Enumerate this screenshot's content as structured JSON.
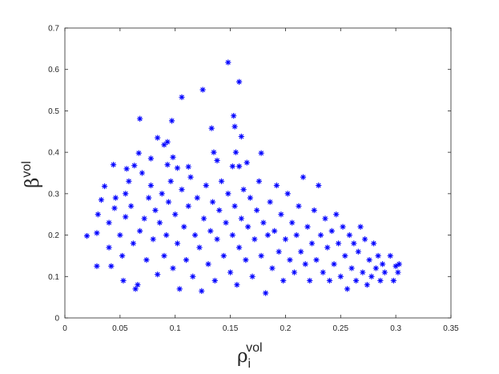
{
  "chart_data": {
    "type": "scatter",
    "title": "",
    "xlabel": {
      "symbol": "ρ",
      "subscript": "i",
      "superscript": "vol"
    },
    "ylabel": {
      "symbol": "β",
      "superscript": "vol"
    },
    "xlim": [
      0,
      0.35
    ],
    "ylim": [
      0,
      0.7
    ],
    "xticks": [
      0,
      0.05,
      0.1,
      0.15,
      0.2,
      0.25,
      0.3,
      0.35
    ],
    "xtick_labels": [
      "0",
      "0.05",
      "0.1",
      "0.15",
      "0.2",
      "0.25",
      "0.3",
      "0.35"
    ],
    "yticks": [
      0,
      0.1,
      0.2,
      0.3,
      0.4,
      0.5,
      0.6,
      0.7
    ],
    "ytick_labels": [
      "0",
      "0.1",
      "0.2",
      "0.3",
      "0.4",
      "0.5",
      "0.6",
      "0.7"
    ],
    "grid": false,
    "legend": "none",
    "marker": "asterisk",
    "color": "#0000ff",
    "series": [
      {
        "points": [
          [
            0.148,
            0.617
          ],
          [
            0.158,
            0.57
          ],
          [
            0.125,
            0.551
          ],
          [
            0.106,
            0.533
          ],
          [
            0.153,
            0.488
          ],
          [
            0.068,
            0.481
          ],
          [
            0.097,
            0.476
          ],
          [
            0.133,
            0.458
          ],
          [
            0.154,
            0.462
          ],
          [
            0.16,
            0.438
          ],
          [
            0.084,
            0.435
          ],
          [
            0.093,
            0.425
          ],
          [
            0.09,
            0.418
          ],
          [
            0.155,
            0.4
          ],
          [
            0.178,
            0.398
          ],
          [
            0.135,
            0.4
          ],
          [
            0.044,
            0.37
          ],
          [
            0.067,
            0.398
          ],
          [
            0.078,
            0.385
          ],
          [
            0.098,
            0.388
          ],
          [
            0.138,
            0.38
          ],
          [
            0.165,
            0.375
          ],
          [
            0.093,
            0.37
          ],
          [
            0.063,
            0.368
          ],
          [
            0.056,
            0.36
          ],
          [
            0.102,
            0.362
          ],
          [
            0.112,
            0.365
          ],
          [
            0.152,
            0.366
          ],
          [
            0.158,
            0.366
          ],
          [
            0.02,
            0.198
          ],
          [
            0.029,
            0.125
          ],
          [
            0.029,
            0.205
          ],
          [
            0.03,
            0.25
          ],
          [
            0.033,
            0.285
          ],
          [
            0.036,
            0.318
          ],
          [
            0.04,
            0.23
          ],
          [
            0.04,
            0.17
          ],
          [
            0.042,
            0.125
          ],
          [
            0.045,
            0.265
          ],
          [
            0.046,
            0.29
          ],
          [
            0.05,
            0.2
          ],
          [
            0.052,
            0.15
          ],
          [
            0.053,
            0.09
          ],
          [
            0.055,
            0.244
          ],
          [
            0.055,
            0.3
          ],
          [
            0.058,
            0.33
          ],
          [
            0.06,
            0.27
          ],
          [
            0.062,
            0.18
          ],
          [
            0.064,
            0.07
          ],
          [
            0.066,
            0.08
          ],
          [
            0.068,
            0.21
          ],
          [
            0.07,
            0.35
          ],
          [
            0.072,
            0.24
          ],
          [
            0.074,
            0.14
          ],
          [
            0.076,
            0.29
          ],
          [
            0.078,
            0.32
          ],
          [
            0.08,
            0.19
          ],
          [
            0.082,
            0.26
          ],
          [
            0.084,
            0.105
          ],
          [
            0.086,
            0.23
          ],
          [
            0.088,
            0.3
          ],
          [
            0.09,
            0.15
          ],
          [
            0.092,
            0.2
          ],
          [
            0.094,
            0.28
          ],
          [
            0.096,
            0.33
          ],
          [
            0.098,
            0.12
          ],
          [
            0.1,
            0.25
          ],
          [
            0.102,
            0.18
          ],
          [
            0.104,
            0.07
          ],
          [
            0.106,
            0.31
          ],
          [
            0.108,
            0.22
          ],
          [
            0.11,
            0.14
          ],
          [
            0.112,
            0.27
          ],
          [
            0.114,
            0.34
          ],
          [
            0.116,
            0.1
          ],
          [
            0.118,
            0.2
          ],
          [
            0.12,
            0.29
          ],
          [
            0.122,
            0.17
          ],
          [
            0.124,
            0.065
          ],
          [
            0.126,
            0.24
          ],
          [
            0.128,
            0.32
          ],
          [
            0.13,
            0.13
          ],
          [
            0.132,
            0.21
          ],
          [
            0.134,
            0.28
          ],
          [
            0.136,
            0.09
          ],
          [
            0.138,
            0.19
          ],
          [
            0.14,
            0.26
          ],
          [
            0.142,
            0.33
          ],
          [
            0.144,
            0.15
          ],
          [
            0.146,
            0.23
          ],
          [
            0.148,
            0.3
          ],
          [
            0.15,
            0.11
          ],
          [
            0.152,
            0.2
          ],
          [
            0.154,
            0.27
          ],
          [
            0.156,
            0.08
          ],
          [
            0.158,
            0.17
          ],
          [
            0.16,
            0.24
          ],
          [
            0.162,
            0.31
          ],
          [
            0.164,
            0.14
          ],
          [
            0.166,
            0.22
          ],
          [
            0.168,
            0.29
          ],
          [
            0.17,
            0.1
          ],
          [
            0.172,
            0.19
          ],
          [
            0.174,
            0.26
          ],
          [
            0.176,
            0.33
          ],
          [
            0.178,
            0.15
          ],
          [
            0.18,
            0.23
          ],
          [
            0.182,
            0.06
          ],
          [
            0.184,
            0.2
          ],
          [
            0.186,
            0.28
          ],
          [
            0.188,
            0.12
          ],
          [
            0.19,
            0.21
          ],
          [
            0.192,
            0.32
          ],
          [
            0.194,
            0.16
          ],
          [
            0.196,
            0.25
          ],
          [
            0.198,
            0.09
          ],
          [
            0.2,
            0.19
          ],
          [
            0.202,
            0.3
          ],
          [
            0.204,
            0.14
          ],
          [
            0.206,
            0.23
          ],
          [
            0.208,
            0.11
          ],
          [
            0.21,
            0.2
          ],
          [
            0.212,
            0.27
          ],
          [
            0.214,
            0.16
          ],
          [
            0.216,
            0.34
          ],
          [
            0.218,
            0.13
          ],
          [
            0.22,
            0.22
          ],
          [
            0.222,
            0.09
          ],
          [
            0.224,
            0.18
          ],
          [
            0.226,
            0.26
          ],
          [
            0.228,
            0.14
          ],
          [
            0.23,
            0.32
          ],
          [
            0.232,
            0.2
          ],
          [
            0.234,
            0.11
          ],
          [
            0.236,
            0.24
          ],
          [
            0.238,
            0.17
          ],
          [
            0.24,
            0.09
          ],
          [
            0.242,
            0.21
          ],
          [
            0.244,
            0.13
          ],
          [
            0.246,
            0.25
          ],
          [
            0.248,
            0.18
          ],
          [
            0.25,
            0.1
          ],
          [
            0.252,
            0.22
          ],
          [
            0.254,
            0.15
          ],
          [
            0.256,
            0.07
          ],
          [
            0.258,
            0.2
          ],
          [
            0.26,
            0.12
          ],
          [
            0.262,
            0.18
          ],
          [
            0.264,
            0.09
          ],
          [
            0.266,
            0.16
          ],
          [
            0.268,
            0.22
          ],
          [
            0.27,
            0.11
          ],
          [
            0.272,
            0.19
          ],
          [
            0.274,
            0.08
          ],
          [
            0.276,
            0.14
          ],
          [
            0.278,
            0.1
          ],
          [
            0.28,
            0.18
          ],
          [
            0.282,
            0.12
          ],
          [
            0.284,
            0.15
          ],
          [
            0.286,
            0.09
          ],
          [
            0.288,
            0.13
          ],
          [
            0.29,
            0.11
          ],
          [
            0.295,
            0.15
          ],
          [
            0.298,
            0.09
          ],
          [
            0.3,
            0.125
          ],
          [
            0.302,
            0.11
          ],
          [
            0.303,
            0.13
          ]
        ]
      }
    ]
  }
}
